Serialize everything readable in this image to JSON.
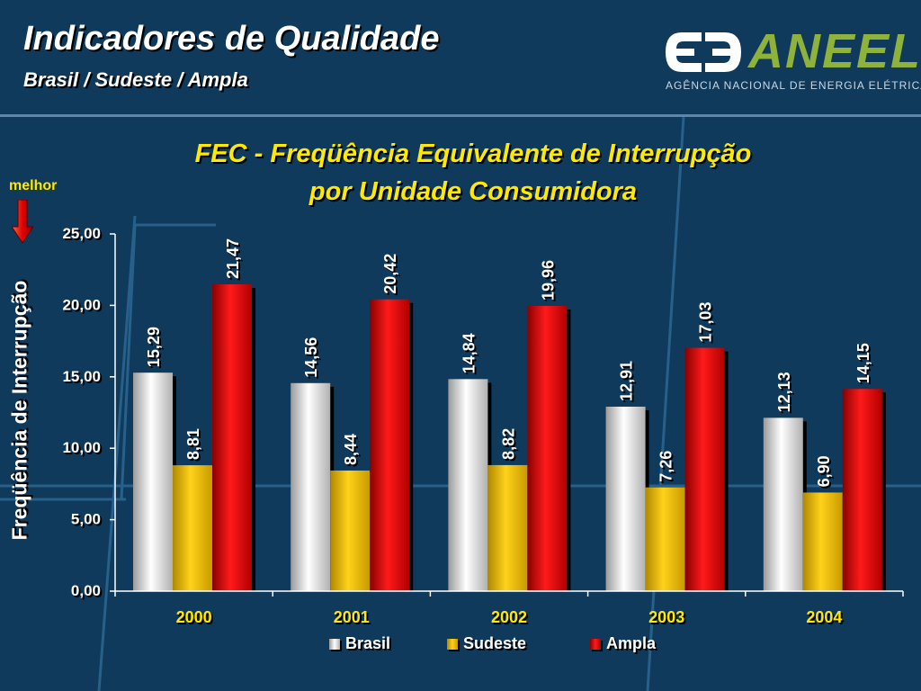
{
  "header": {
    "title": "Indicadores de Qualidade",
    "subtitle": "Brasil / Sudeste / Ampla"
  },
  "logo": {
    "name": "ANEEL",
    "tagline": "AGÊNCIA NACIONAL DE ENERGIA ELÉTRICA"
  },
  "annotation": {
    "better_label": "melhor"
  },
  "colors": {
    "background": "#0f3a5c",
    "title_yellow": "#ffe900",
    "brasil": "#e8e8e8",
    "sudeste": "#f2c200",
    "ampla": "#e00000"
  },
  "chart_data": {
    "type": "bar",
    "title_line1": "FEC - Freqüência Equivalente de Interrupção",
    "title_line2": "por Unidade Consumidora",
    "ylabel": "Freqüência de Interrupção",
    "xlabel": "",
    "categories": [
      "2000",
      "2001",
      "2002",
      "2003",
      "2004"
    ],
    "ylim": [
      0,
      25
    ],
    "yticks": [
      "0,00",
      "5,00",
      "10,00",
      "15,00",
      "20,00",
      "25,00"
    ],
    "series": [
      {
        "name": "Brasil",
        "values": [
          15.29,
          14.56,
          14.84,
          12.91,
          12.13
        ],
        "labels": [
          "15,29",
          "14,56",
          "14,84",
          "12,91",
          "12,13"
        ]
      },
      {
        "name": "Sudeste",
        "values": [
          8.81,
          8.44,
          8.82,
          7.26,
          6.9
        ],
        "labels": [
          "8,81",
          "8,44",
          "8,82",
          "7,26",
          "6,90"
        ]
      },
      {
        "name": "Ampla",
        "values": [
          21.47,
          20.42,
          19.96,
          17.03,
          14.15
        ],
        "labels": [
          "21,47",
          "20,42",
          "19,96",
          "17,03",
          "14,15"
        ]
      }
    ],
    "grid": false,
    "legend_position": "bottom"
  }
}
